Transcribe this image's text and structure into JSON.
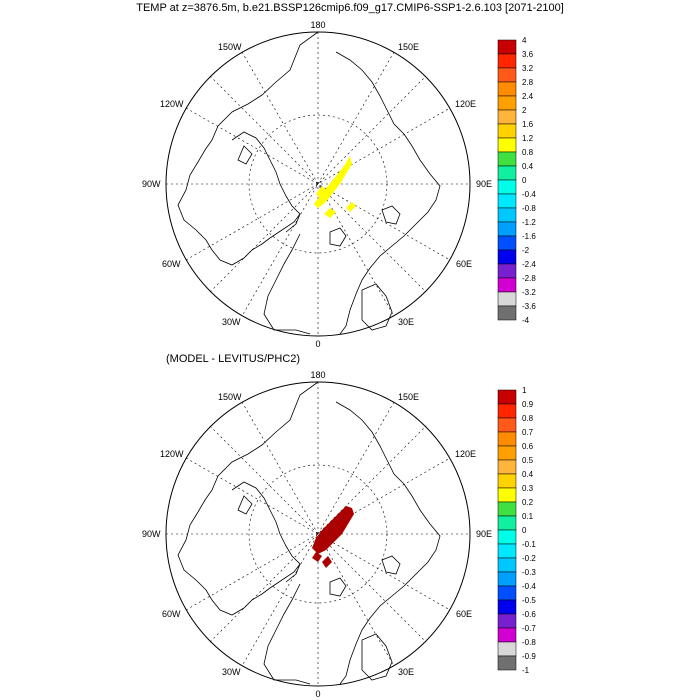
{
  "title": "TEMP at z=3876.5m, b.e21.BSSP126cmip6.f09_g17.CMIP6-SSP1-2.6.103 [2071-2100]",
  "subtitle": "(MODEL - LEVITUS/PHC2)",
  "lon_labels": {
    "top": "180",
    "bottom": "0",
    "l150": "150W",
    "r150": "150E",
    "l120": "120W",
    "r120": "120E",
    "l90": "90W",
    "r90": "90E",
    "l60": "60W",
    "r60": "60E",
    "l30": "30W",
    "r30": "30E"
  },
  "legend1": {
    "levels": [
      "4",
      "3.6",
      "3.2",
      "2.8",
      "2.4",
      "2",
      "1.6",
      "1.2",
      "0.8",
      "0.4",
      "0",
      "-0.4",
      "-0.8",
      "-1.2",
      "-1.6",
      "-2",
      "-2.4",
      "-2.8",
      "-3.2",
      "-3.6",
      "-4"
    ],
    "colors": [
      "#c80000",
      "#ff2600",
      "#ff5a1a",
      "#ff8c00",
      "#ffa000",
      "#ffb43c",
      "#ffd200",
      "#ffff00",
      "#40e040",
      "#10f0a0",
      "#00ffe8",
      "#00e8ff",
      "#00c8ff",
      "#00a0ff",
      "#0050ff",
      "#0000ee",
      "#7820d0",
      "#d200d2",
      "#d8d8d8",
      "#707070"
    ]
  },
  "legend2": {
    "levels": [
      "1",
      "0.9",
      "0.8",
      "0.7",
      "0.6",
      "0.5",
      "0.4",
      "0.3",
      "0.2",
      "0.1",
      "0",
      "-0.1",
      "-0.2",
      "-0.3",
      "-0.4",
      "-0.5",
      "-0.6",
      "-0.7",
      "-0.8",
      "-0.9",
      "-1"
    ],
    "colors": [
      "#c80000",
      "#ff2600",
      "#ff5a1a",
      "#ff8c00",
      "#ffa000",
      "#ffb43c",
      "#ffd200",
      "#ffff00",
      "#40e040",
      "#10f0a0",
      "#00ffe8",
      "#00e8ff",
      "#00c8ff",
      "#00a0ff",
      "#0050ff",
      "#0000ee",
      "#7820d0",
      "#d200d2",
      "#d8d8d8",
      "#707070"
    ]
  },
  "colors": {
    "anomaly_top": "#ffff00",
    "anomaly_bottom": "#aa0000"
  }
}
